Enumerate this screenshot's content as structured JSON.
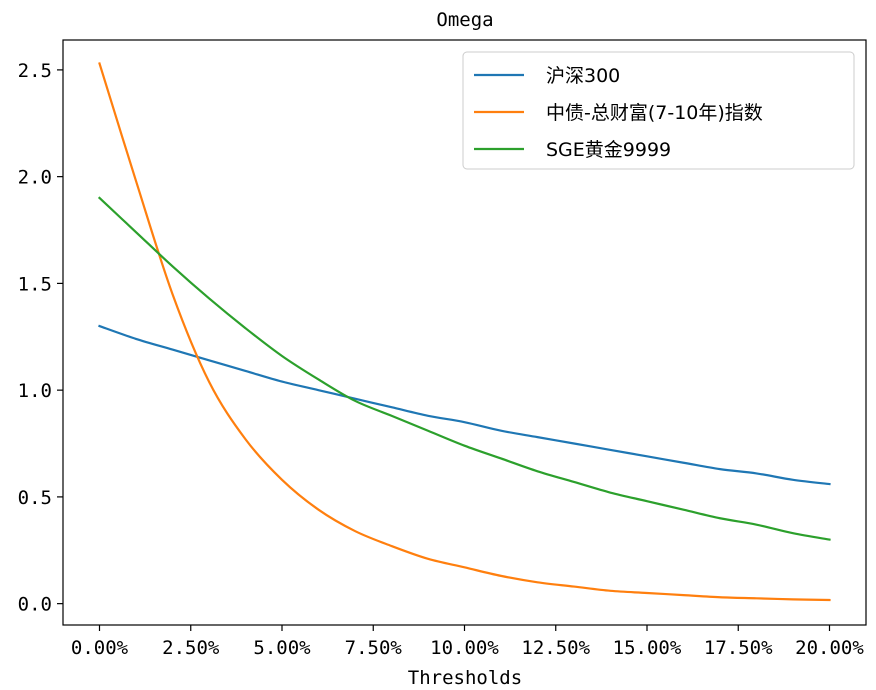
{
  "chart_data": {
    "type": "line",
    "title": "Omega",
    "xlabel": "Thresholds",
    "ylabel": "",
    "xlim": [
      -0.01,
      0.21
    ],
    "ylim": [
      -0.1,
      2.64
    ],
    "grid": false,
    "legend_position": "upper-right",
    "x_ticks": [
      0,
      0.025,
      0.05,
      0.075,
      0.1,
      0.125,
      0.15,
      0.175,
      0.2
    ],
    "x_tick_labels": [
      "0.00%",
      "2.50%",
      "5.00%",
      "7.50%",
      "10.00%",
      "12.50%",
      "15.00%",
      "17.50%",
      "20.00%"
    ],
    "y_ticks": [
      0,
      0.5,
      1.0,
      1.5,
      2.0,
      2.5
    ],
    "y_tick_labels": [
      "0.0",
      "0.5",
      "1.0",
      "1.5",
      "2.0",
      "2.5"
    ],
    "x": [
      0,
      0.01,
      0.02,
      0.03,
      0.04,
      0.05,
      0.06,
      0.07,
      0.08,
      0.09,
      0.1,
      0.11,
      0.12,
      0.13,
      0.14,
      0.15,
      0.16,
      0.17,
      0.18,
      0.19,
      0.2
    ],
    "series": [
      {
        "name": "沪深300",
        "color": "#1f77b4",
        "values": [
          1.3,
          1.24,
          1.19,
          1.14,
          1.09,
          1.04,
          1.0,
          0.96,
          0.92,
          0.88,
          0.85,
          0.81,
          0.78,
          0.75,
          0.72,
          0.69,
          0.66,
          0.63,
          0.61,
          0.58,
          0.56
        ]
      },
      {
        "name": "中债-总财富(7-10年)指数",
        "color": "#ff7f0e",
        "values": [
          2.53,
          1.98,
          1.45,
          1.04,
          0.77,
          0.58,
          0.44,
          0.34,
          0.27,
          0.21,
          0.17,
          0.13,
          0.1,
          0.08,
          0.06,
          0.05,
          0.04,
          0.03,
          0.025,
          0.02,
          0.017
        ]
      },
      {
        "name": "SGE黄金9999",
        "color": "#2ca02c",
        "values": [
          1.9,
          1.74,
          1.58,
          1.43,
          1.29,
          1.16,
          1.05,
          0.95,
          0.88,
          0.81,
          0.74,
          0.68,
          0.62,
          0.57,
          0.52,
          0.48,
          0.44,
          0.4,
          0.37,
          0.33,
          0.3
        ]
      }
    ]
  }
}
